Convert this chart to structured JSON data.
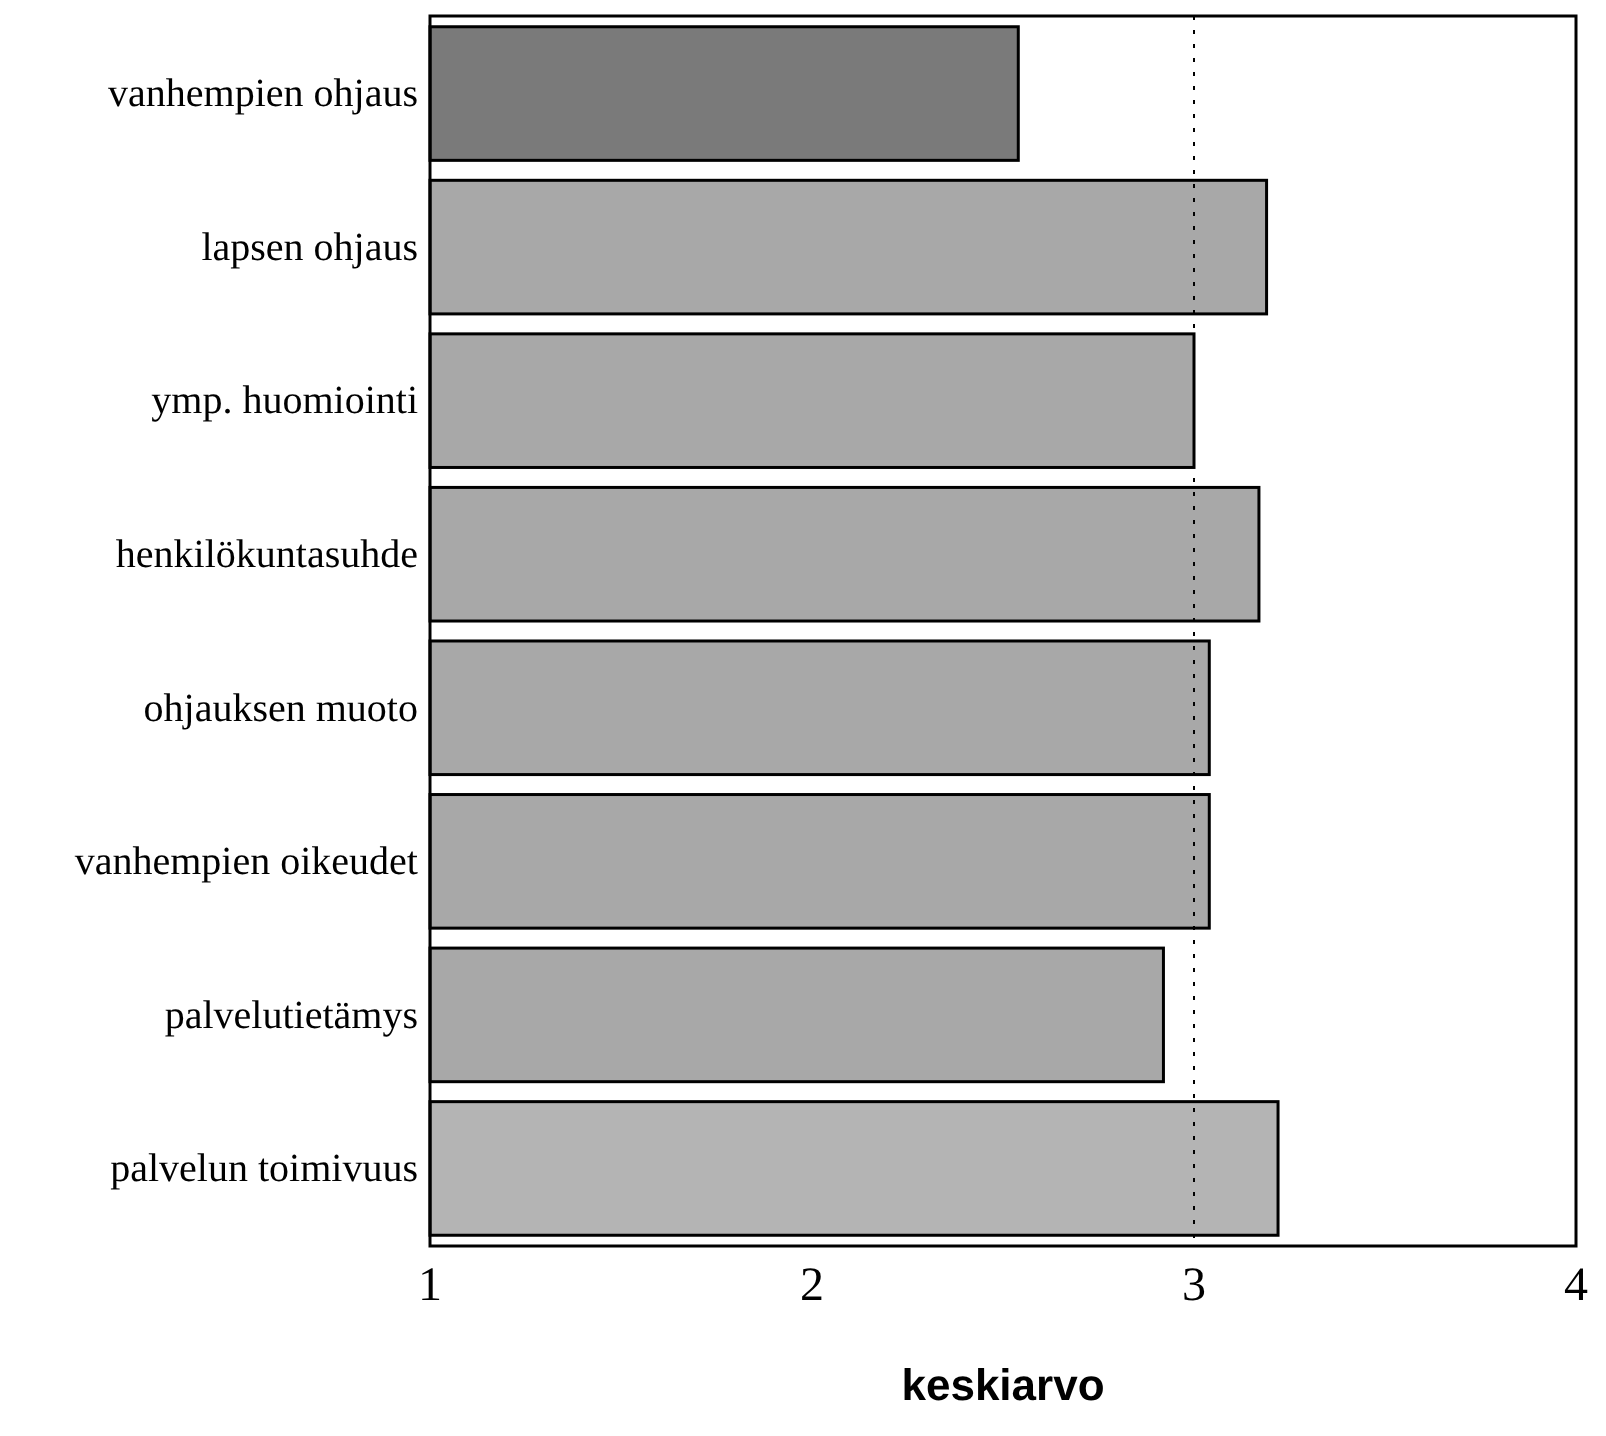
{
  "chart_data": {
    "type": "bar",
    "orientation": "horizontal",
    "xlabel": "keskiarvo",
    "categories": [
      "vanhempien ohjaus",
      "lapsen ohjaus",
      "ymp. huomiointi",
      "henkilökuntasuhde",
      "ohjauksen muoto",
      "vanhempien oikeudet",
      "palvelutietämys",
      "palvelun toimivuus"
    ],
    "values": [
      2.54,
      3.19,
      3.0,
      3.17,
      3.04,
      3.04,
      2.92,
      3.22
    ],
    "colors": [
      "#7a7a7a",
      "#a8a8a8",
      "#a8a8a8",
      "#a8a8a8",
      "#a8a8a8",
      "#a8a8a8",
      "#a8a8a8",
      "#b4b4b4"
    ],
    "xlim": [
      1,
      4
    ],
    "xticks": [
      1,
      2,
      3,
      4
    ],
    "ref_lines": [
      {
        "axis": "x",
        "value": 3,
        "line_style": "dotted",
        "color": "#000000"
      }
    ]
  }
}
